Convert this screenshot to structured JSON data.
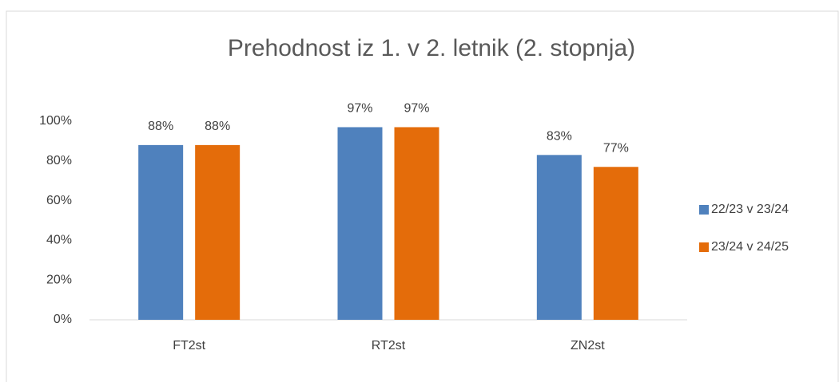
{
  "chart_data": {
    "type": "bar",
    "title": "Prehodnost iz 1. v 2. letnik (2. stopnja)",
    "categories": [
      "FT2st",
      "RT2st",
      "ZN2st"
    ],
    "series": [
      {
        "name": "22/23 v 23/24",
        "color": "#4f81bd",
        "values": [
          88,
          97,
          83
        ],
        "value_labels": [
          "88%",
          "97%",
          "83%"
        ]
      },
      {
        "name": "23/24 v 24/25",
        "color": "#e46c0a",
        "values": [
          88,
          97,
          77
        ],
        "value_labels": [
          "88%",
          "97%",
          "77%"
        ]
      }
    ],
    "ylim": [
      0,
      100
    ],
    "yticks": [
      {
        "value": 0,
        "label": "0%"
      },
      {
        "value": 20,
        "label": "20%"
      },
      {
        "value": 40,
        "label": "40%"
      },
      {
        "value": 60,
        "label": "60%"
      },
      {
        "value": 80,
        "label": "80%"
      },
      {
        "value": 100,
        "label": "100%"
      }
    ],
    "grid": false,
    "legend": "right"
  }
}
